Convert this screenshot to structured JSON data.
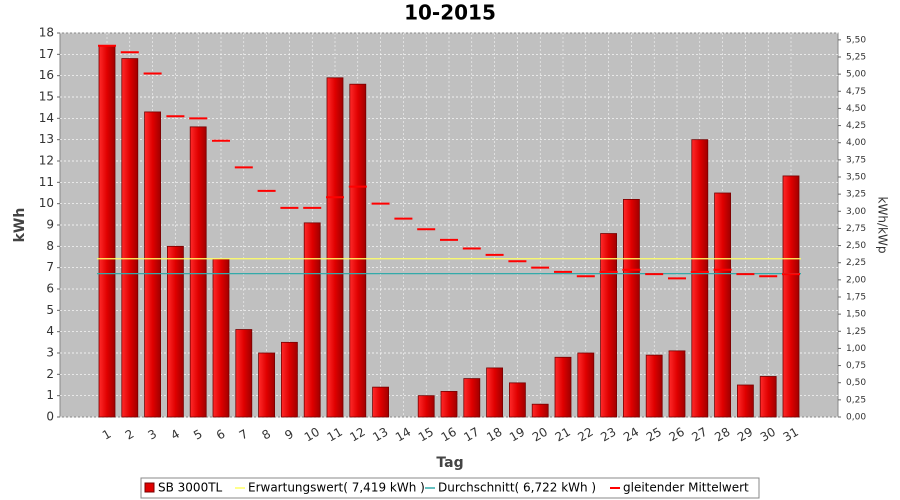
{
  "chart_data": {
    "type": "bar",
    "title": "10-2015",
    "x_label": "Tag",
    "y_label": "kWh",
    "y2_label": "kWh/kWp",
    "categories": [
      "1",
      "2",
      "3",
      "4",
      "5",
      "6",
      "7",
      "8",
      "9",
      "10",
      "11",
      "12",
      "13",
      "14",
      "15",
      "16",
      "17",
      "18",
      "19",
      "20",
      "21",
      "22",
      "23",
      "24",
      "25",
      "26",
      "27",
      "28",
      "29",
      "30",
      "31"
    ],
    "series": [
      {
        "name": "SB 3000TL",
        "color": "#e00000",
        "values": [
          17.4,
          16.8,
          14.3,
          8.0,
          13.6,
          7.4,
          4.1,
          3.0,
          3.5,
          9.1,
          15.9,
          15.6,
          1.4,
          0,
          1.0,
          1.2,
          1.8,
          2.3,
          1.6,
          0.6,
          2.8,
          3.0,
          8.6,
          10.2,
          2.9,
          3.1,
          13.0,
          10.5,
          1.5,
          1.9,
          11.3
        ]
      },
      {
        "name": "Erwartungswert( 7,419 kWh )",
        "color": "#ffff66",
        "value": 7.419
      },
      {
        "name": "Durchschnitt( 6,722 kWh )",
        "color": "#33aaaa",
        "value": 6.722
      },
      {
        "name": "gleitender Mittelwert",
        "color": "#ff0000",
        "values": [
          17.4,
          17.1,
          16.1,
          14.1,
          14.0,
          12.95,
          11.7,
          10.6,
          9.8,
          9.8,
          10.3,
          10.8,
          10.0,
          9.3,
          8.8,
          8.3,
          7.9,
          7.6,
          7.3,
          7.0,
          6.8,
          6.6,
          6.8,
          6.9,
          6.7,
          6.5,
          6.8,
          6.9,
          6.7,
          6.6,
          6.7
        ]
      }
    ],
    "ylim": [
      0,
      18
    ],
    "yticks": [
      0,
      1,
      2,
      3,
      4,
      5,
      6,
      7,
      8,
      9,
      10,
      11,
      12,
      13,
      14,
      15,
      16,
      17,
      18
    ],
    "y2lim": [
      0,
      5.6
    ],
    "y2ticks": [
      {
        "value": 0,
        "label": "0,00"
      },
      {
        "value": 0.25,
        "label": "0,25"
      },
      {
        "value": 0.5,
        "label": "0,50"
      },
      {
        "value": 0.75,
        "label": "0,75"
      },
      {
        "value": 1,
        "label": "1,00"
      },
      {
        "value": 1.25,
        "label": "1,25"
      },
      {
        "value": 1.5,
        "label": "1,50"
      },
      {
        "value": 1.75,
        "label": "1,75"
      },
      {
        "value": 2,
        "label": "2,00"
      },
      {
        "value": 2.25,
        "label": "2,25"
      },
      {
        "value": 2.5,
        "label": "2,50"
      },
      {
        "value": 2.75,
        "label": "2,75"
      },
      {
        "value": 3,
        "label": "3,00"
      },
      {
        "value": 3.25,
        "label": "3,25"
      },
      {
        "value": 3.5,
        "label": "3,50"
      },
      {
        "value": 3.75,
        "label": "3,75"
      },
      {
        "value": 4,
        "label": "4,00"
      },
      {
        "value": 4.25,
        "label": "4,25"
      },
      {
        "value": 4.5,
        "label": "4,50"
      },
      {
        "value": 4.75,
        "label": "4,75"
      },
      {
        "value": 5,
        "label": "5,00"
      },
      {
        "value": 5.25,
        "label": "5,25"
      },
      {
        "value": 5.5,
        "label": "5,50"
      }
    ],
    "grid": true
  }
}
